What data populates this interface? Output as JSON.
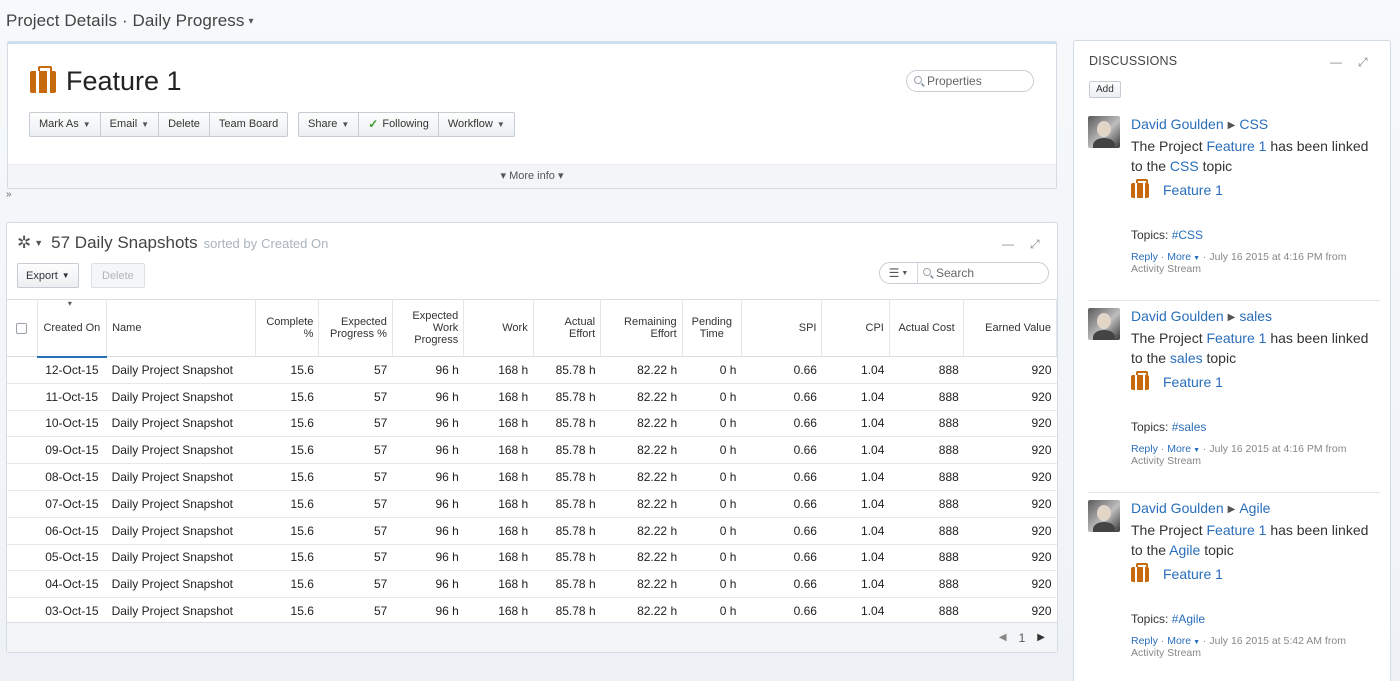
{
  "breadcrumb": {
    "project": "Project Details",
    "separator": "·",
    "view": "Daily Progress"
  },
  "header": {
    "title": "Feature 1",
    "properties_placeholder": "Properties",
    "toolbar1": [
      "Mark As",
      "Email",
      "Delete",
      "Team Board"
    ],
    "toolbar2": {
      "share": "Share",
      "following": "Following",
      "workflow": "Workflow"
    },
    "more_info": "More info"
  },
  "snapshots": {
    "count_title": "57 Daily Snapshots",
    "sorted_by": "sorted by",
    "sorted_field": "Created On",
    "export": "Export",
    "delete": "Delete",
    "search_placeholder": "Search",
    "columns": [
      "Created On",
      "Name",
      "Complete %",
      "Expected Progress %",
      "Expected Work Progress",
      "Work",
      "Actual Effort",
      "Remaining Effort",
      "Pending Time",
      "SPI",
      "CPI",
      "Actual Cost",
      "Earned Value"
    ],
    "rows": [
      [
        "12-Oct-15",
        "Daily Project Snapshot",
        "15.6",
        "57",
        "96 h",
        "168 h",
        "85.78 h",
        "82.22 h",
        "0 h",
        "0.66",
        "1.04",
        "888",
        "920"
      ],
      [
        "11-Oct-15",
        "Daily Project Snapshot",
        "15.6",
        "57",
        "96 h",
        "168 h",
        "85.78 h",
        "82.22 h",
        "0 h",
        "0.66",
        "1.04",
        "888",
        "920"
      ],
      [
        "10-Oct-15",
        "Daily Project Snapshot",
        "15.6",
        "57",
        "96 h",
        "168 h",
        "85.78 h",
        "82.22 h",
        "0 h",
        "0.66",
        "1.04",
        "888",
        "920"
      ],
      [
        "09-Oct-15",
        "Daily Project Snapshot",
        "15.6",
        "57",
        "96 h",
        "168 h",
        "85.78 h",
        "82.22 h",
        "0 h",
        "0.66",
        "1.04",
        "888",
        "920"
      ],
      [
        "08-Oct-15",
        "Daily Project Snapshot",
        "15.6",
        "57",
        "96 h",
        "168 h",
        "85.78 h",
        "82.22 h",
        "0 h",
        "0.66",
        "1.04",
        "888",
        "920"
      ],
      [
        "07-Oct-15",
        "Daily Project Snapshot",
        "15.6",
        "57",
        "96 h",
        "168 h",
        "85.78 h",
        "82.22 h",
        "0 h",
        "0.66",
        "1.04",
        "888",
        "920"
      ],
      [
        "06-Oct-15",
        "Daily Project Snapshot",
        "15.6",
        "57",
        "96 h",
        "168 h",
        "85.78 h",
        "82.22 h",
        "0 h",
        "0.66",
        "1.04",
        "888",
        "920"
      ],
      [
        "05-Oct-15",
        "Daily Project Snapshot",
        "15.6",
        "57",
        "96 h",
        "168 h",
        "85.78 h",
        "82.22 h",
        "0 h",
        "0.66",
        "1.04",
        "888",
        "920"
      ],
      [
        "04-Oct-15",
        "Daily Project Snapshot",
        "15.6",
        "57",
        "96 h",
        "168 h",
        "85.78 h",
        "82.22 h",
        "0 h",
        "0.66",
        "1.04",
        "888",
        "920"
      ],
      [
        "03-Oct-15",
        "Daily Project Snapshot",
        "15.6",
        "57",
        "96 h",
        "168 h",
        "85.78 h",
        "82.22 h",
        "0 h",
        "0.66",
        "1.04",
        "888",
        "920"
      ]
    ],
    "page": "1"
  },
  "discussions": {
    "title": "DISCUSSIONS",
    "add": "Add",
    "posts": [
      {
        "author": "David Goulden",
        "topic": "CSS",
        "text_pre": "The Project",
        "project": "Feature 1",
        "text_mid": "has been linked to the",
        "text_post": "topic",
        "linked": "Feature 1",
        "topics_label": "Topics:",
        "tag": "#CSS",
        "reply": "Reply",
        "more": "More",
        "when": "July 16 2015 at 4:16 PM from Activity Stream"
      },
      {
        "author": "David Goulden",
        "topic": "sales",
        "text_pre": "The Project",
        "project": "Feature 1",
        "text_mid": "has been linked to the",
        "text_post": "topic",
        "linked": "Feature 1",
        "topics_label": "Topics:",
        "tag": "#sales",
        "reply": "Reply",
        "more": "More",
        "when": "July 16 2015 at 4:16 PM from Activity Stream"
      },
      {
        "author": "David Goulden",
        "topic": "Agile",
        "text_pre": "The Project",
        "project": "Feature 1",
        "text_mid": "has been linked to the",
        "text_post": "topic",
        "linked": "Feature 1",
        "topics_label": "Topics:",
        "tag": "#Agile",
        "reply": "Reply",
        "more": "More",
        "when": "July 16 2015 at 5:42 AM from Activity Stream"
      }
    ]
  },
  "icons": {
    "briefcase": "briefcase-icon",
    "gear": "gear-icon",
    "search": "search-icon",
    "filter": "filter-icon",
    "minimize": "minimize-icon",
    "expand": "expand-icon",
    "check": "check-icon"
  },
  "colors": {
    "accent": "#2a6ebb",
    "briefcase": "#c76a0d",
    "follow_check": "#3a9a2a"
  }
}
